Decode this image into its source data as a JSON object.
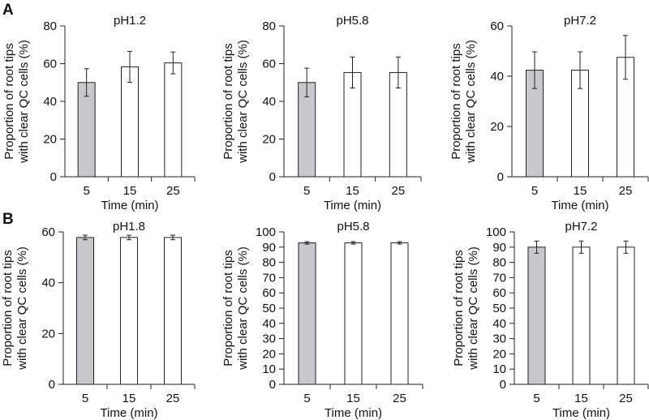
{
  "panel_labels": {
    "a": "A",
    "b": "B"
  },
  "colors": {
    "bar_first": "#c8c8cc",
    "bar_other": "#ffffff",
    "stroke": "#222222"
  },
  "chart_data": [
    {
      "type": "bar",
      "panel": "A",
      "title": "pH1.2",
      "categories": [
        "5",
        "15",
        "25"
      ],
      "values": [
        50,
        58.3,
        60.4
      ],
      "errors": [
        7.3,
        8.2,
        5.8
      ],
      "ylim": [
        0,
        80
      ],
      "yticks": [
        0,
        20,
        40,
        60,
        80
      ],
      "xlabel": "Time (min)",
      "ylabel_line1": "Proportion of root tips",
      "ylabel_line2": "with clear QC cells (%)"
    },
    {
      "type": "bar",
      "panel": "A",
      "title": "pH5.8",
      "categories": [
        "5",
        "15",
        "25"
      ],
      "values": [
        50,
        55.3,
        55.3
      ],
      "errors": [
        7.6,
        8.2,
        8.2
      ],
      "ylim": [
        0,
        80
      ],
      "yticks": [
        0,
        20,
        40,
        60,
        80
      ],
      "xlabel": "Time (min)",
      "ylabel_line1": "Proportion of root tips",
      "ylabel_line2": "with clear QC cells (%)"
    },
    {
      "type": "bar",
      "panel": "A",
      "title": "pH7.2",
      "categories": [
        "5",
        "15",
        "25"
      ],
      "values": [
        42.4,
        42.4,
        47.5
      ],
      "errors": [
        7.3,
        7.3,
        8.7
      ],
      "ylim": [
        0,
        60
      ],
      "yticks": [
        0,
        20,
        40,
        60
      ],
      "xlabel": "Time (min)",
      "ylabel_line1": "Proportion of root tips",
      "ylabel_line2": "with clear QC cells (%)"
    },
    {
      "type": "bar",
      "panel": "B",
      "title": "pH1.8",
      "categories": [
        "5",
        "15",
        "25"
      ],
      "values": [
        57.8,
        57.8,
        57.8
      ],
      "errors": [
        0.9,
        0.9,
        0.9
      ],
      "ylim": [
        0,
        60
      ],
      "yticks": [
        0,
        20,
        40,
        60
      ],
      "xlabel": "Time (min)",
      "ylabel_line1": "Proportion of root tips",
      "ylabel_line2": "with clear QC cells (%)"
    },
    {
      "type": "bar",
      "panel": "B",
      "title": "pH5.8",
      "categories": [
        "5",
        "15",
        "25"
      ],
      "values": [
        92.8,
        92.8,
        92.8
      ],
      "errors": [
        0.8,
        0.8,
        0.8
      ],
      "ylim": [
        0,
        100
      ],
      "yticks": [
        0,
        10,
        20,
        30,
        40,
        50,
        60,
        70,
        80,
        90,
        100
      ],
      "xlabel": "Time (min)",
      "ylabel_line1": "Proportion of root tips",
      "ylabel_line2": "with clear QC cells (%)"
    },
    {
      "type": "bar",
      "panel": "B",
      "title": "pH7.2",
      "categories": [
        "5",
        "15",
        "25"
      ],
      "values": [
        90,
        90,
        90
      ],
      "errors": [
        4,
        4,
        4
      ],
      "ylim": [
        0,
        100
      ],
      "yticks": [
        0,
        10,
        20,
        30,
        40,
        50,
        60,
        70,
        80,
        90,
        100
      ],
      "xlabel": "Time (min)",
      "ylabel_line1": "Proportion of root tips",
      "ylabel_line2": "with clear QC cells (%)"
    }
  ]
}
